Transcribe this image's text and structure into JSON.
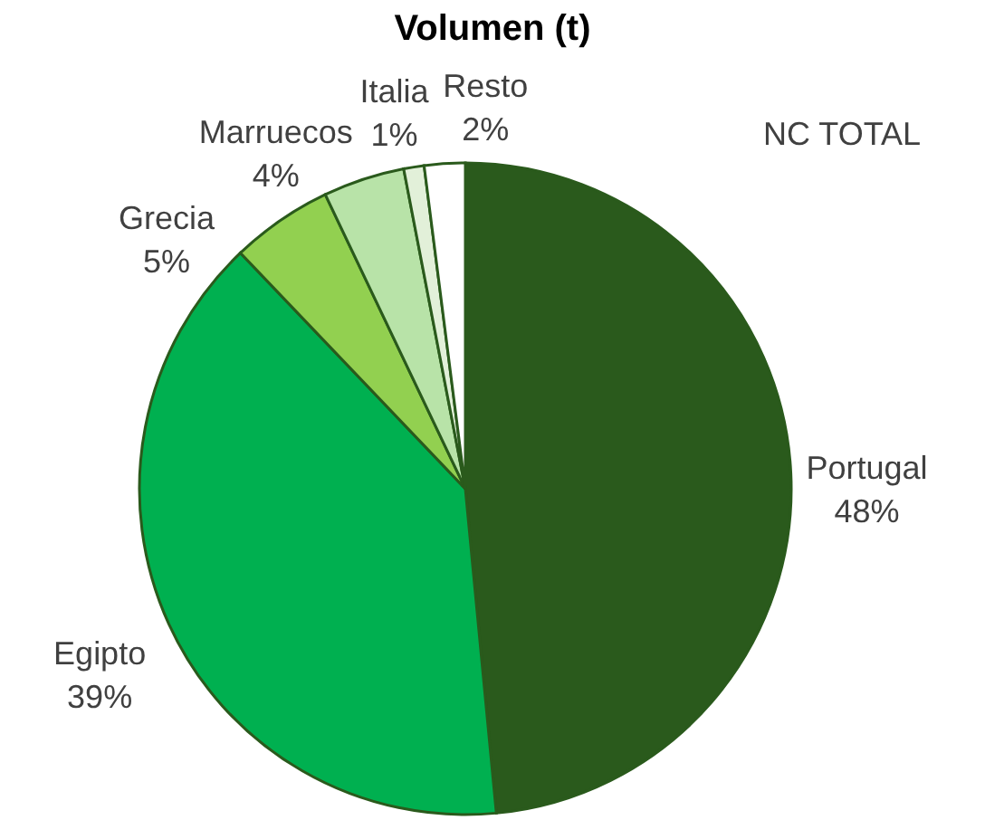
{
  "chart_data": {
    "type": "pie",
    "title": "Volumen (t)",
    "categories": [
      "Portugal",
      "Egipto",
      "Grecia",
      "Marruecos",
      "Italia",
      "Resto"
    ],
    "values": [
      48,
      39,
      5,
      4,
      1,
      2
    ],
    "value_labels": [
      "48%",
      "39%",
      "5%",
      "4%",
      "1%",
      "2%"
    ],
    "colors": [
      "#2a5a1c",
      "#00b050",
      "#92d050",
      "#b8e3a8",
      "#e2f0d9",
      "#ffffff"
    ],
    "annotations": [
      "NC TOTAL"
    ]
  }
}
